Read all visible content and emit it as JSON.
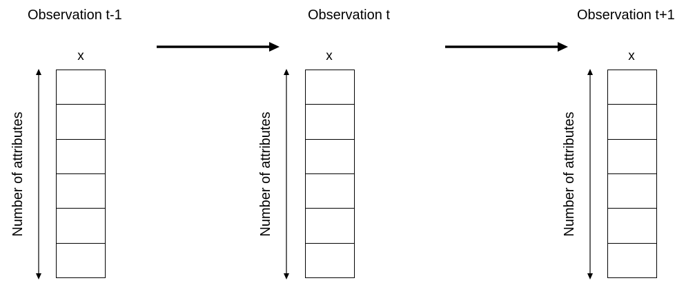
{
  "observations": [
    {
      "title": "Observation t-1",
      "variable": "x",
      "dimension_label": "Number of attributes",
      "cell_count": 6
    },
    {
      "title": "Observation t",
      "variable": "x",
      "dimension_label": "Number of attributes",
      "cell_count": 6
    },
    {
      "title": "Observation t+1",
      "variable": "x",
      "dimension_label": "Number of attributes",
      "cell_count": 6
    }
  ],
  "flow": {
    "arrow_count": 2,
    "direction": "right"
  },
  "colors": {
    "stroke": "#000000",
    "background": "#ffffff"
  }
}
